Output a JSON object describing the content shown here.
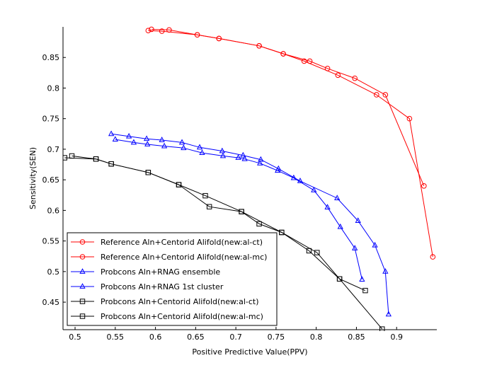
{
  "chart_data": {
    "type": "line",
    "title": "",
    "xlabel": "Positive Predictive Value(PPV)",
    "ylabel": "Sensitivity(SEN)",
    "xlim": [
      0.485,
      0.95
    ],
    "ylim": [
      0.405,
      0.9
    ],
    "xticks": [
      0.5,
      0.55,
      0.6,
      0.65,
      0.7,
      0.75,
      0.8,
      0.85,
      0.9
    ],
    "yticks": [
      0.45,
      0.5,
      0.55,
      0.6,
      0.65,
      0.7,
      0.75,
      0.8,
      0.85
    ],
    "xtick_labels": [
      "0.5",
      "0.55",
      "0.6",
      "0.65",
      "0.7",
      "0.75",
      "0.8",
      "0.85",
      "0.9"
    ],
    "ytick_labels": [
      "0.45",
      "0.5",
      "0.55",
      "0.6",
      "0.65",
      "0.7",
      "0.75",
      "0.8",
      "0.85"
    ],
    "grid": false,
    "legend_position": "bottom-left",
    "series": [
      {
        "name": "Reference Aln+Centorid Alifold(new:al-ct)",
        "color": "#ff0000",
        "marker": "circle",
        "points": [
          [
            0.595,
            0.896
          ],
          [
            0.617,
            0.895
          ],
          [
            0.652,
            0.887
          ],
          [
            0.679,
            0.881
          ],
          [
            0.729,
            0.869
          ],
          [
            0.759,
            0.856
          ],
          [
            0.785,
            0.844
          ],
          [
            0.827,
            0.821
          ],
          [
            0.875,
            0.789
          ],
          [
            0.916,
            0.75
          ],
          [
            0.945,
            0.524
          ]
        ]
      },
      {
        "name": "Reference Aln+Centorid Alifold(new:al-mc)",
        "color": "#ff0000",
        "marker": "circle",
        "points": [
          [
            0.591,
            0.894
          ],
          [
            0.608,
            0.893
          ],
          [
            0.652,
            0.887
          ],
          [
            0.679,
            0.881
          ],
          [
            0.729,
            0.869
          ],
          [
            0.759,
            0.856
          ],
          [
            0.792,
            0.844
          ],
          [
            0.814,
            0.832
          ],
          [
            0.848,
            0.816
          ],
          [
            0.886,
            0.789
          ],
          [
            0.934,
            0.64
          ]
        ]
      },
      {
        "name": "Probcons Aln+RNAG ensemble",
        "color": "#0000ff",
        "marker": "triangle",
        "points": [
          [
            0.545,
            0.725
          ],
          [
            0.567,
            0.721
          ],
          [
            0.589,
            0.717
          ],
          [
            0.608,
            0.715
          ],
          [
            0.633,
            0.711
          ],
          [
            0.655,
            0.703
          ],
          [
            0.683,
            0.697
          ],
          [
            0.709,
            0.69
          ],
          [
            0.731,
            0.683
          ],
          [
            0.753,
            0.668
          ],
          [
            0.78,
            0.648
          ],
          [
            0.826,
            0.62
          ],
          [
            0.852,
            0.583
          ],
          [
            0.873,
            0.543
          ],
          [
            0.886,
            0.5
          ],
          [
            0.89,
            0.43
          ]
        ]
      },
      {
        "name": "Probcons Aln+RNAG 1st cluster",
        "color": "#0000ff",
        "marker": "triangle",
        "points": [
          [
            0.55,
            0.716
          ],
          [
            0.573,
            0.711
          ],
          [
            0.59,
            0.708
          ],
          [
            0.611,
            0.705
          ],
          [
            0.635,
            0.702
          ],
          [
            0.658,
            0.694
          ],
          [
            0.684,
            0.689
          ],
          [
            0.703,
            0.686
          ],
          [
            0.711,
            0.684
          ],
          [
            0.73,
            0.677
          ],
          [
            0.752,
            0.665
          ],
          [
            0.772,
            0.653
          ],
          [
            0.797,
            0.633
          ],
          [
            0.814,
            0.605
          ],
          [
            0.83,
            0.573
          ],
          [
            0.848,
            0.538
          ],
          [
            0.857,
            0.487
          ]
        ]
      },
      {
        "name": "Probcons Aln+Centorid Alifold(new:al-ct)",
        "color": "#000000",
        "marker": "square",
        "points": [
          [
            0.487,
            0.686
          ],
          [
            0.526,
            0.684
          ],
          [
            0.545,
            0.676
          ],
          [
            0.591,
            0.662
          ],
          [
            0.629,
            0.642
          ],
          [
            0.662,
            0.624
          ],
          [
            0.707,
            0.598
          ],
          [
            0.757,
            0.564
          ],
          [
            0.801,
            0.531
          ],
          [
            0.829,
            0.488
          ],
          [
            0.861,
            0.469
          ]
        ]
      },
      {
        "name": "Probcons Aln+Centorid Alifold(new:al-mc)",
        "color": "#000000",
        "marker": "square",
        "points": [
          [
            0.496,
            0.689
          ],
          [
            0.526,
            0.684
          ],
          [
            0.545,
            0.676
          ],
          [
            0.591,
            0.662
          ],
          [
            0.629,
            0.642
          ],
          [
            0.667,
            0.606
          ],
          [
            0.707,
            0.598
          ],
          [
            0.729,
            0.578
          ],
          [
            0.757,
            0.564
          ],
          [
            0.791,
            0.534
          ],
          [
            0.829,
            0.488
          ],
          [
            0.882,
            0.406
          ]
        ]
      }
    ]
  }
}
